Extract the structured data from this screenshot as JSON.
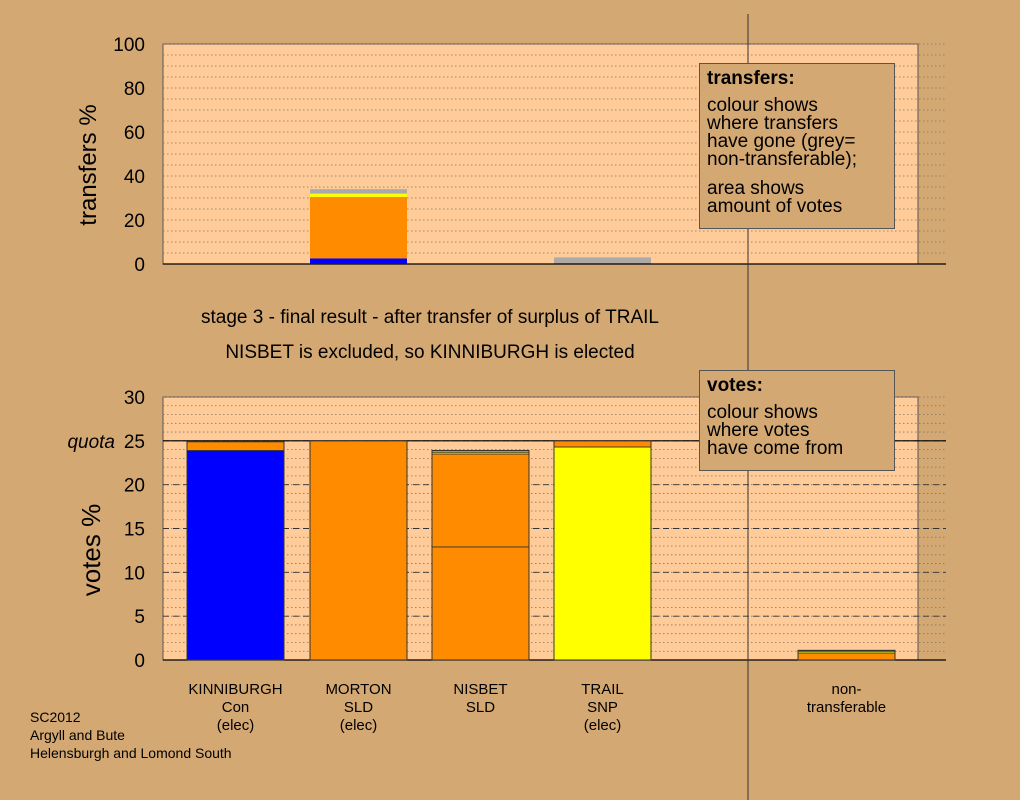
{
  "colors": {
    "background": "#d4a872",
    "plot_background": "#ffcc99",
    "Con": "#0000ff",
    "SLD": "#ff8c00",
    "SNP": "#ffff00",
    "grey": "#aaaaaa",
    "red": "#cc0000"
  },
  "heading": {
    "line1": "stage 3 - final result - after transfer of surplus of TRAIL",
    "line2": "NISBET is excluded, so KINNIBURGH is elected"
  },
  "transfers_box": {
    "title": "transfers:",
    "lines": [
      "colour shows",
      "where transfers",
      "have gone (grey=",
      "non-transferable);"
    ],
    "lines2": [
      "area shows",
      "amount of votes"
    ]
  },
  "votes_box": {
    "title": "votes:",
    "lines": [
      "colour shows",
      "where votes",
      "have come from"
    ]
  },
  "footer": {
    "line1": "SC2012",
    "line2": "Argyll and Bute",
    "line3": "Helensburgh and Lomond South"
  },
  "chart_data": [
    {
      "type": "bar",
      "stacked": true,
      "ylabel": "transfers %",
      "ylim": [
        0,
        100
      ],
      "yticks": [
        "0",
        "20",
        "40",
        "60",
        "80",
        "100"
      ],
      "grid": "dotted",
      "bars": [
        {
          "slot": 1,
          "segments": [
            {
              "color": "#0000ff",
              "value": 2.5
            },
            {
              "color": "#ff8c00",
              "value": 28
            },
            {
              "color": "#ffff00",
              "value": 1.5
            },
            {
              "color": "#aaaaaa",
              "value": 2
            }
          ]
        },
        {
          "slot": 3,
          "segments": [
            {
              "color": "#cc0000",
              "value": 0.5
            },
            {
              "color": "#aaaaaa",
              "value": 2.5
            }
          ]
        }
      ]
    },
    {
      "type": "bar",
      "stacked": true,
      "ylabel": "votes %",
      "ylim": [
        0,
        30
      ],
      "yticks": [
        "0",
        "5",
        "10",
        "15",
        "20",
        "25",
        "30"
      ],
      "quota": 25,
      "quota_label": "quota",
      "grid": "dashed",
      "categories": [
        {
          "lines": [
            "KINNIBURGH",
            "Con",
            "(elec)"
          ]
        },
        {
          "lines": [
            "MORTON",
            "SLD",
            "(elec)"
          ]
        },
        {
          "lines": [
            "NISBET",
            "SLD"
          ]
        },
        {
          "lines": [
            "TRAIL",
            "SNP",
            "(elec)"
          ]
        },
        {
          "lines": [
            "non-",
            "transferable"
          ]
        }
      ],
      "bars": [
        {
          "slot": 0,
          "segments": [
            {
              "color": "#0000ff",
              "value": 23.9
            },
            {
              "color": "#ff8c00",
              "value": 1.0
            }
          ]
        },
        {
          "slot": 1,
          "segments": [
            {
              "color": "#ff8c00",
              "value": 25.0
            }
          ]
        },
        {
          "slot": 2,
          "segments": [
            {
              "color": "#ff8c00",
              "value": 12.9
            },
            {
              "color": "#ff8c00",
              "value": 10.6
            },
            {
              "color": "#ffff00",
              "value": 0.2
            },
            {
              "color": "#aaaaaa",
              "value": 0.2
            }
          ]
        },
        {
          "slot": 3,
          "segments": [
            {
              "color": "#ffff00",
              "value": 24.3
            },
            {
              "color": "#ff8c00",
              "value": 0.7
            }
          ]
        },
        {
          "slot": 5,
          "segments": [
            {
              "color": "#ff8c00",
              "value": 0.8
            },
            {
              "color": "#ffff00",
              "value": 0.2
            },
            {
              "color": "#aaaaaa",
              "value": 0.1
            }
          ]
        }
      ]
    }
  ]
}
